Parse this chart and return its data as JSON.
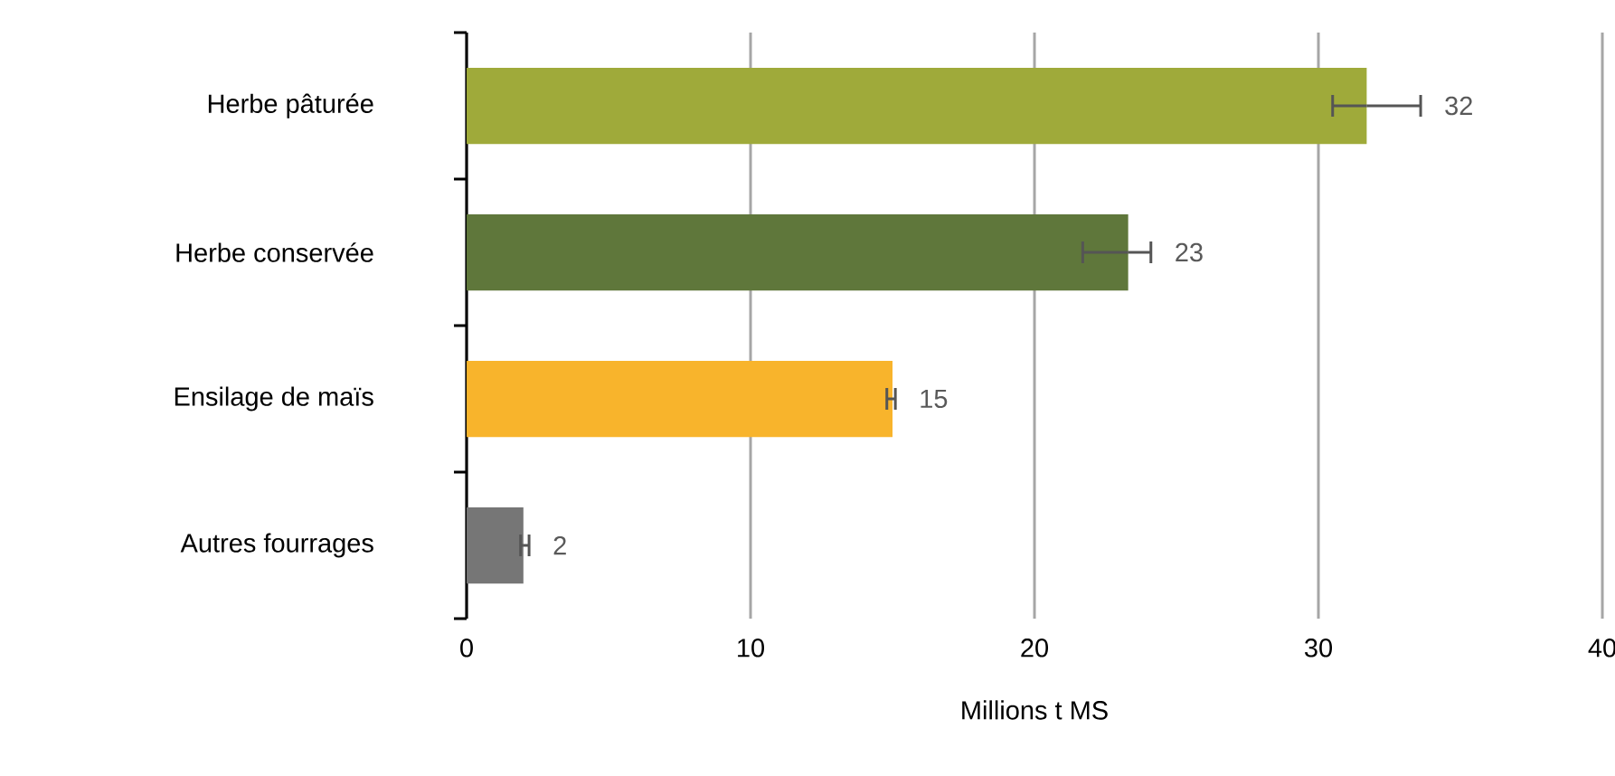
{
  "chart_data": {
    "type": "bar",
    "orientation": "horizontal",
    "xlabel": "Millions t MS",
    "categories": [
      "Herbe pâturée",
      "Herbe conservée",
      "Ensilage de maïs",
      "Autres fourrages"
    ],
    "values": [
      31.7,
      23.3,
      15.0,
      2.0
    ],
    "colors": [
      "#9faa3a",
      "#5f773b",
      "#f8b42c",
      "#767676"
    ],
    "errors": [
      [
        30.5,
        33.6
      ],
      [
        21.7,
        24.1
      ],
      [
        14.8,
        15.1
      ],
      [
        1.9,
        2.2
      ]
    ],
    "value_labels": [
      "32",
      "23",
      "15",
      "2"
    ],
    "xlim": [
      0,
      40
    ],
    "xticks": [
      0,
      10,
      20,
      30,
      40
    ],
    "grid": "x"
  }
}
